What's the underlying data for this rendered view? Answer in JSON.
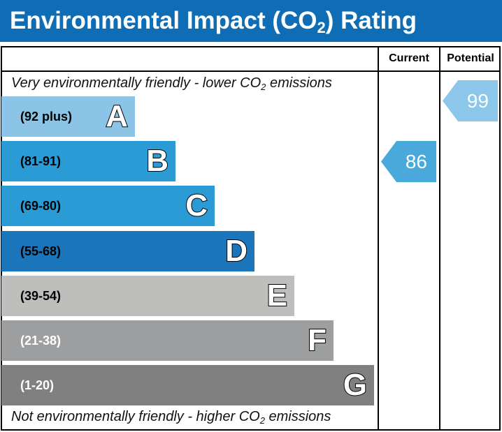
{
  "title": {
    "text": "Environmental Impact (CO",
    "sub": "2",
    "suffix": ") Rating"
  },
  "columns": {
    "current": "Current",
    "potential": "Potential"
  },
  "top_note": {
    "text": "Very environmentally friendly - lower CO",
    "sub": "2",
    "suffix": " emissions"
  },
  "bottom_note": {
    "text": "Not environmentally friendly - higher CO",
    "sub": "2",
    "suffix": " emissions"
  },
  "chart_data": {
    "type": "bar",
    "categories": [
      "A",
      "B",
      "C",
      "D",
      "E",
      "F",
      "G"
    ],
    "ranges": [
      "(92 plus)",
      "(81-91)",
      "(69-80)",
      "(55-68)",
      "(39-54)",
      "(21-38)",
      "(1-20)"
    ],
    "colors": [
      "#8bc4e6",
      "#2a9bd5",
      "#2a9bd5",
      "#1a75ba",
      "#bebebd",
      "#9d9ea0",
      "#808080"
    ],
    "range_text_colors": [
      "#000",
      "#000",
      "#000",
      "#000",
      "#000",
      "#fff",
      "#fff"
    ],
    "current": {
      "value": 86,
      "band": "B",
      "color": "#4aa9db"
    },
    "potential": {
      "value": 99,
      "band": "A",
      "color": "#8cc6e8"
    }
  }
}
